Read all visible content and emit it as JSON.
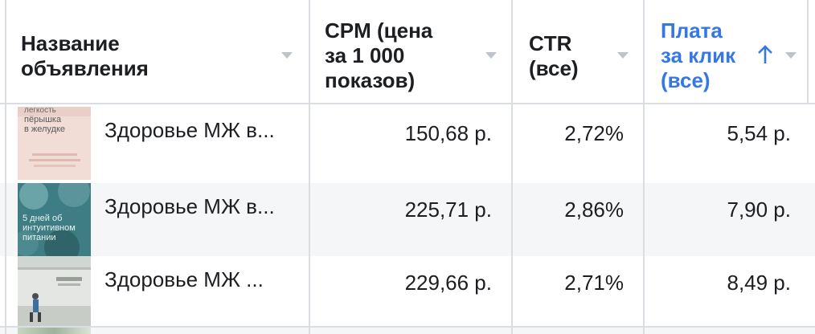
{
  "header": {
    "col_name": {
      "line1": "Название",
      "line2": "объявления"
    },
    "col_cpm": {
      "line1": "CPM (цена",
      "line2": "за 1 000",
      "line3": "показов)"
    },
    "col_ctr": {
      "line1": "CTR",
      "line2": "(все)"
    },
    "col_cpc": {
      "line1": "Плата",
      "line2": "за клик",
      "line3": "(все)"
    },
    "sorted_column": "col_cpc",
    "sort_direction": "ascending",
    "accent_color": "#3578e5"
  },
  "rows": [
    {
      "name": "Здоровье МЖ в...",
      "cpm": "150,68 р.",
      "ctr": "2,72%",
      "cpc": "5,54 р.",
      "thumb": {
        "lines": [
          "легкость",
          "пёрышка",
          "в желудке"
        ],
        "palette": "pink"
      }
    },
    {
      "name": "Здоровье МЖ в...",
      "cpm": "225,71 р.",
      "ctr": "2,86%",
      "cpc": "7,90 р.",
      "thumb": {
        "lines": [
          "5 дней об",
          "интуитивном",
          "питании"
        ],
        "palette": "teal"
      }
    },
    {
      "name": "Здоровье МЖ ...",
      "cpm": "229,66 р.",
      "ctr": "2,71%",
      "cpc": "8,49 р.",
      "thumb": {
        "lines": [],
        "palette": "grey"
      }
    }
  ]
}
